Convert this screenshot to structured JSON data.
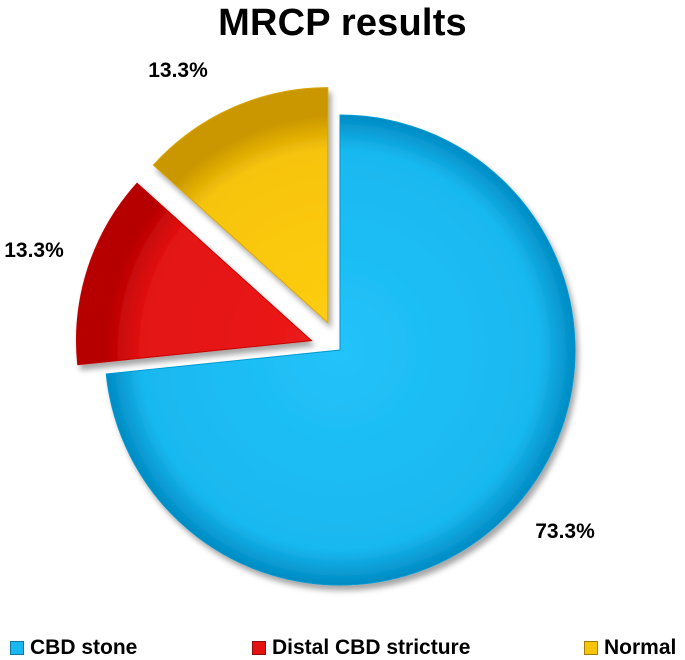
{
  "chart_data": {
    "type": "pie",
    "title": "MRCP results",
    "categories": [
      "CBD stone",
      "Distal CBD stricture",
      "Normal"
    ],
    "values": [
      73.3,
      13.3,
      13.3
    ],
    "data_labels": [
      "73.3%",
      "13.3%",
      "13.3%"
    ],
    "colors": [
      "#19B8F0",
      "#E31212",
      "#F7C40A"
    ],
    "exploded": true,
    "legend_position": "bottom"
  }
}
